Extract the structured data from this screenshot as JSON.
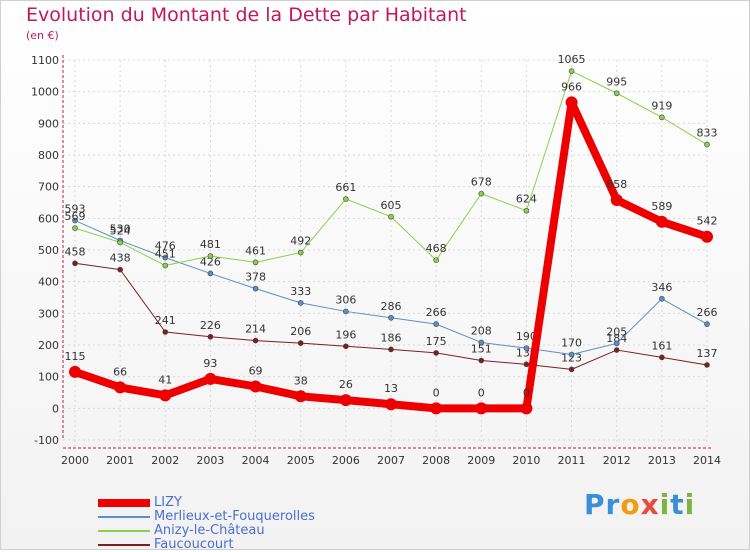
{
  "title": "Evolution du Montant de la Dette par Habitant",
  "subtitle": "(en €)",
  "logo": {
    "text": "Proxiti",
    "letters": [
      "P",
      "r",
      "o",
      "x",
      "i",
      "t",
      "i"
    ],
    "colors": [
      "#3a8fd8",
      "#3a8fd8",
      "#f39c12",
      "#e74c3c",
      "#7cb342",
      "#3a8fd8",
      "#7cb342"
    ]
  },
  "chart_data": {
    "type": "line",
    "x": [
      2000,
      2001,
      2002,
      2003,
      2004,
      2005,
      2006,
      2007,
      2008,
      2009,
      2010,
      2011,
      2012,
      2013,
      2014
    ],
    "ylim": [
      -100,
      1100
    ],
    "yticks": [
      -100,
      0,
      100,
      200,
      300,
      400,
      500,
      600,
      700,
      800,
      900,
      1000,
      1100
    ],
    "grid": true,
    "legend_position": "bottom-left",
    "series": [
      {
        "name": "Faucoucourt",
        "color": "#7b1f24",
        "width": 1,
        "marker": 2.5,
        "values": [
          458,
          438,
          241,
          226,
          214,
          206,
          196,
          186,
          175,
          151,
          139,
          123,
          184,
          161,
          137
        ]
      },
      {
        "name": "Merlieux-et-Fouquerolles",
        "color": "#5b8fc9",
        "width": 1,
        "marker": 2.5,
        "values": [
          593,
          530,
          476,
          426,
          378,
          333,
          306,
          286,
          266,
          208,
          190,
          170,
          205,
          346,
          266
        ]
      },
      {
        "name": "Anizy-le-Château",
        "color": "#8ad14a",
        "width": 1,
        "marker": 2.5,
        "values": [
          569,
          524,
          451,
          481,
          461,
          492,
          661,
          605,
          468,
          678,
          624,
          1065,
          995,
          919,
          833
        ]
      },
      {
        "name": "LIZY",
        "color": "#ee0000",
        "width": 8,
        "marker": 6,
        "values": [
          115,
          66,
          41,
          93,
          69,
          38,
          26,
          13,
          0,
          0,
          0,
          966,
          658,
          589,
          542
        ]
      }
    ],
    "legend_order": [
      "LIZY",
      "Merlieux-et-Fouquerolles",
      "Anizy-le-Château",
      "Faucoucourt"
    ]
  }
}
